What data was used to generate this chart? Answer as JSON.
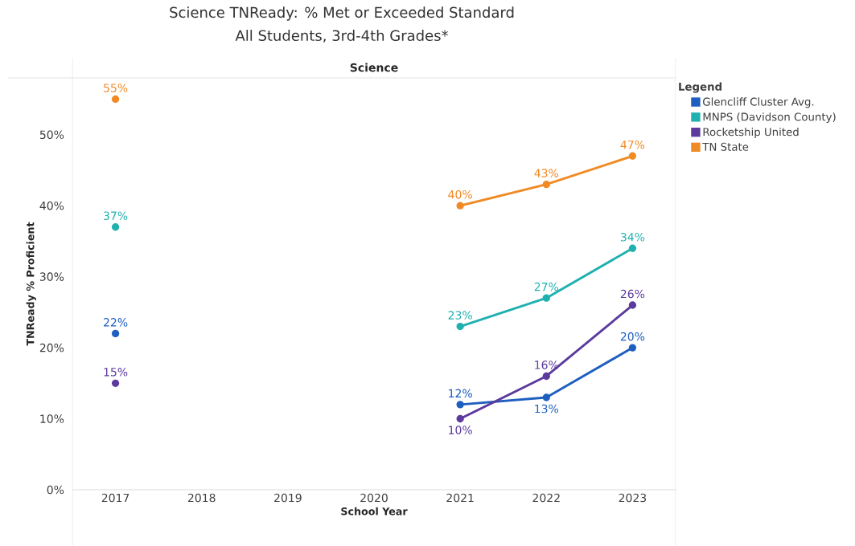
{
  "chart_data": {
    "type": "line",
    "title": "Science TNReady: % Met or Exceeded Standard",
    "subtitle": "All Students, 3rd-4th Grades*",
    "annotations": [
      "Science"
    ],
    "xlabel": "School Year",
    "ylabel": "TNReady % Proficient",
    "legend_title": "Legend",
    "legend": "right",
    "marker": "circle",
    "grid": false,
    "categories": [
      "2017",
      "2018",
      "2019",
      "2020",
      "2021",
      "2022",
      "2023"
    ],
    "ylim": [
      0,
      58
    ],
    "yticks": [
      {
        "value": 0,
        "label": "0%"
      },
      {
        "value": 10,
        "label": "10%"
      },
      {
        "value": 20,
        "label": "20%"
      },
      {
        "value": 30,
        "label": "30%"
      },
      {
        "value": 40,
        "label": "40%"
      },
      {
        "value": 50,
        "label": "50%"
      }
    ],
    "series": [
      {
        "name": "Glencliff Cluster Avg.",
        "color": "#1f5fbf",
        "values": [
          22,
          null,
          null,
          null,
          12,
          13,
          20
        ],
        "value_labels": [
          "22%",
          null,
          null,
          null,
          "12%",
          "13%",
          "20%"
        ]
      },
      {
        "name": "MNPS (Davidson County)",
        "color": "#1fb0b0",
        "values": [
          37,
          null,
          null,
          null,
          23,
          27,
          34
        ],
        "value_labels": [
          "37%",
          null,
          null,
          null,
          "23%",
          "27%",
          "34%"
        ]
      },
      {
        "name": "Rocketship United",
        "color": "#5c3a9e",
        "values": [
          15,
          null,
          null,
          null,
          10,
          16,
          26
        ],
        "value_labels": [
          "15%",
          null,
          null,
          null,
          "10%",
          "16%",
          "26%"
        ]
      },
      {
        "name": "TN State",
        "color": "#f08a24",
        "values": [
          55,
          null,
          null,
          null,
          40,
          43,
          47
        ],
        "value_labels": [
          "55%",
          null,
          null,
          null,
          "40%",
          "43%",
          "47%"
        ]
      }
    ]
  }
}
